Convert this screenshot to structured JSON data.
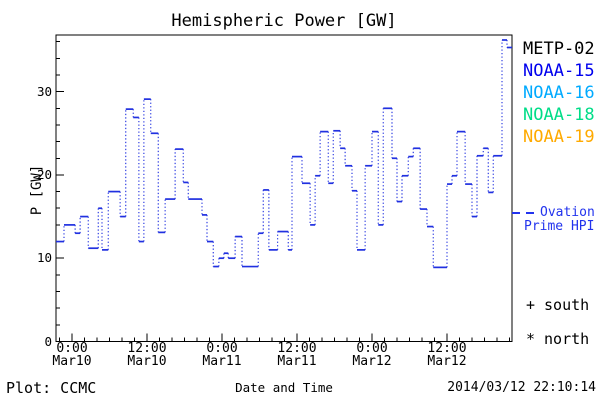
{
  "chart_data": {
    "type": "line",
    "subtype": "dotted-step",
    "title": "Hemispheric Power [GW]",
    "xlabel": "Date and Time",
    "ylabel": "P [GW]",
    "ylim": [
      0,
      36.8
    ],
    "x_hours_range": [
      -2.56,
      70.4
    ],
    "x_unit": "hours from Mar10 0:00",
    "x_minor_step_hours": 2,
    "y_minor_step": 2,
    "y_major_ticks": [
      0,
      10,
      20,
      30
    ],
    "x_major_ticks": [
      {
        "t": 0,
        "time": "0:00",
        "date": "Mar10"
      },
      {
        "t": 12,
        "time": "12:00",
        "date": "Mar10"
      },
      {
        "t": 24,
        "time": "0:00",
        "date": "Mar11"
      },
      {
        "t": 36,
        "time": "12:00",
        "date": "Mar11"
      },
      {
        "t": 48,
        "time": "0:00",
        "date": "Mar12"
      },
      {
        "t": 60,
        "time": "12:00",
        "date": "Mar12"
      }
    ],
    "grid": false,
    "colors": {
      "axis": "#000000",
      "background": "#ffffff"
    },
    "series": [
      {
        "name": "Ovation Prime HPI",
        "color": "#2030e0",
        "points": [
          [
            -2.56,
            12.0
          ],
          [
            -1.28,
            14.0
          ],
          [
            0.5,
            13.0
          ],
          [
            1.3,
            15.0
          ],
          [
            2.6,
            11.2
          ],
          [
            4.2,
            16.0
          ],
          [
            4.8,
            11.0
          ],
          [
            5.8,
            18.0
          ],
          [
            7.7,
            15.0
          ],
          [
            8.6,
            27.9
          ],
          [
            9.8,
            26.9
          ],
          [
            10.7,
            12.0
          ],
          [
            11.5,
            29.1
          ],
          [
            12.6,
            25.0
          ],
          [
            13.8,
            13.1
          ],
          [
            14.9,
            17.1
          ],
          [
            16.5,
            23.1
          ],
          [
            17.8,
            19.1
          ],
          [
            18.6,
            17.1
          ],
          [
            20.8,
            15.2
          ],
          [
            21.6,
            12.0
          ],
          [
            22.6,
            9.0
          ],
          [
            23.5,
            10.0
          ],
          [
            24.3,
            10.6
          ],
          [
            25.0,
            10.0
          ],
          [
            26.1,
            12.6
          ],
          [
            27.2,
            9.0
          ],
          [
            29.8,
            13.0
          ],
          [
            30.6,
            18.2
          ],
          [
            31.5,
            11.0
          ],
          [
            32.9,
            13.2
          ],
          [
            34.6,
            11.0
          ],
          [
            35.2,
            22.2
          ],
          [
            36.8,
            19.0
          ],
          [
            38.1,
            14.0
          ],
          [
            38.9,
            19.9
          ],
          [
            39.7,
            25.2
          ],
          [
            41.0,
            19.0
          ],
          [
            41.8,
            25.3
          ],
          [
            42.9,
            23.2
          ],
          [
            43.7,
            21.1
          ],
          [
            44.8,
            18.1
          ],
          [
            45.6,
            11.0
          ],
          [
            46.9,
            21.1
          ],
          [
            48.0,
            25.2
          ],
          [
            49.0,
            14.0
          ],
          [
            49.8,
            28.0
          ],
          [
            51.2,
            22.0
          ],
          [
            52.0,
            16.8
          ],
          [
            52.8,
            19.9
          ],
          [
            53.8,
            22.2
          ],
          [
            54.6,
            23.2
          ],
          [
            55.7,
            15.9
          ],
          [
            56.8,
            13.8
          ],
          [
            57.8,
            8.9
          ],
          [
            60.0,
            18.9
          ],
          [
            60.8,
            19.9
          ],
          [
            61.6,
            25.2
          ],
          [
            62.9,
            18.9
          ],
          [
            64.0,
            15.0
          ],
          [
            64.8,
            22.3
          ],
          [
            65.8,
            23.2
          ],
          [
            66.6,
            17.9
          ],
          [
            67.4,
            22.3
          ],
          [
            68.8,
            36.2
          ],
          [
            69.6,
            35.3
          ]
        ]
      }
    ]
  },
  "legend": {
    "satellites": [
      {
        "label": "METP-02",
        "color": "#000000"
      },
      {
        "label": "NOAA-15",
        "color": "#0000ee"
      },
      {
        "label": "NOAA-16",
        "color": "#00aaff"
      },
      {
        "label": "NOAA-18",
        "color": "#00dd88"
      },
      {
        "label": "NOAA-19",
        "color": "#ffaa00"
      }
    ],
    "ovation": {
      "line1": "Ovation",
      "line2": "Prime HPI",
      "color": "#2233ee"
    },
    "markers": [
      {
        "symbol": "+",
        "label": "south"
      },
      {
        "symbol": "*",
        "label": "north"
      }
    ]
  },
  "footer": {
    "left": "Plot: CCMC",
    "timestamp": "2014/03/12 22:10:14"
  }
}
